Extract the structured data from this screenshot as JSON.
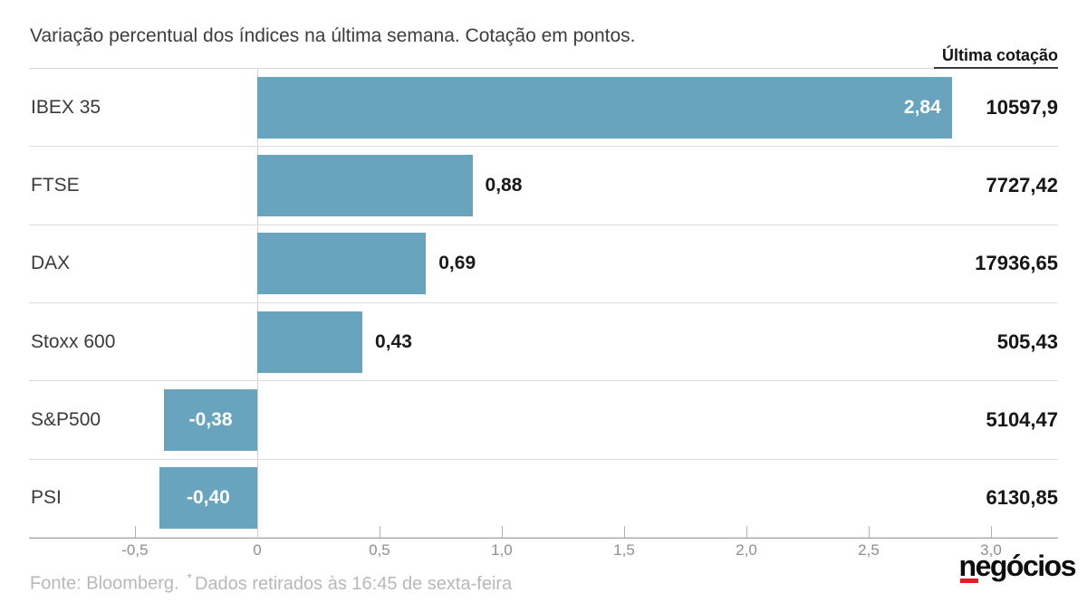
{
  "title": "Variação percentual dos índices na última semana. Cotação em pontos.",
  "quote_header": "Última cotação",
  "footer": {
    "source": "Fonte: Bloomberg.",
    "marker": "*",
    "note": "Dados retirados às 16:45 de sexta-feira"
  },
  "logo": {
    "text": "negócios"
  },
  "colors": {
    "bar": "#69A4BE",
    "bar_label_inside": "#FFFFFF",
    "bar_label_outside": "#1A1A1A",
    "logo_red": "#E31E24",
    "grid": "#DCDCDC",
    "axis": "#A9A9A9",
    "tick_text": "#8F8F8F",
    "footer_text": "#B8B8B8"
  },
  "chart_data": {
    "type": "bar",
    "orientation": "horizontal",
    "title": "Variação percentual dos índices na última semana. Cotação em pontos.",
    "categories": [
      "IBEX 35",
      "FTSE",
      "DAX",
      "Stoxx 600",
      "S&P500",
      "PSI"
    ],
    "values": [
      2.84,
      0.88,
      0.69,
      0.43,
      -0.38,
      -0.4
    ],
    "value_labels": [
      "2,84",
      "0,88",
      "0,69",
      "0,43",
      "-0,38",
      "-0,40"
    ],
    "value_label_position": [
      "inside-right",
      "outside",
      "outside",
      "outside",
      "inside-center",
      "inside-center"
    ],
    "last_quotes": [
      "10597,9",
      "7727,42",
      "17936,65",
      "505,43",
      "5104,47",
      "6130,85"
    ],
    "x_ticks": [
      {
        "label": "-0,5",
        "value": -0.5
      },
      {
        "label": "0",
        "value": 0
      },
      {
        "label": "0,5",
        "value": 0.5
      },
      {
        "label": "1,0",
        "value": 1.0
      },
      {
        "label": "1,5",
        "value": 1.5
      },
      {
        "label": "2,0",
        "value": 2.0
      },
      {
        "label": "2,5",
        "value": 2.5
      },
      {
        "label": "3,0",
        "value": 3.0
      }
    ],
    "xlim": [
      -0.933,
      3.274
    ],
    "grid": "row-separators-and-zero-line",
    "legend": "none"
  }
}
